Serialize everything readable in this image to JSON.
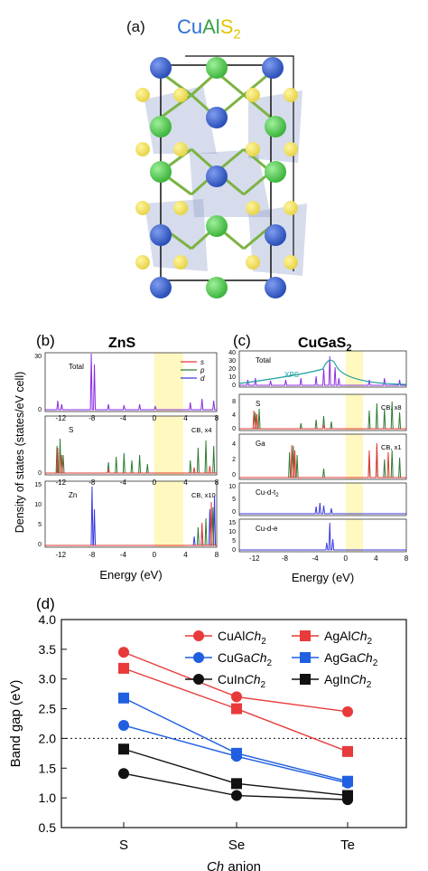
{
  "panel_a": {
    "label": "(a)",
    "formula_parts": [
      {
        "t": "Cu",
        "c": "#2f6fd6"
      },
      {
        "t": "Al",
        "c": "#3aa14a"
      },
      {
        "t": "S",
        "c": "#e0c400"
      },
      {
        "t": "2",
        "c": "#e0c400",
        "sub": true
      }
    ],
    "colors": {
      "cu": "#2a4fb8",
      "al": "#3db43d",
      "s": "#e6d44a",
      "tetra": "#8a9ac8"
    }
  },
  "panel_b": {
    "label": "(b)",
    "title": "ZnS",
    "subplots": [
      "Total",
      "S",
      "Zn"
    ],
    "right_notes": [
      "",
      "CB, x4",
      "CB, x10"
    ],
    "legend": [
      "s",
      "p",
      "d"
    ],
    "xticks": [
      "-12",
      "-8",
      "-4",
      "0",
      "4",
      "8"
    ],
    "yticks_total": [
      "30",
      "0"
    ],
    "yticks_s": [
      "0"
    ],
    "yticks_zn": [
      "15",
      "10",
      "5",
      "0"
    ],
    "xlabel": "Energy (eV)"
  },
  "panel_c": {
    "label": "(c)",
    "title_main": "CuGaS",
    "title_sub": "2",
    "subplots": [
      "Total",
      "S",
      "Ga",
      "Cu-d-t",
      "Cu-d-e"
    ],
    "subplot_sub": [
      "",
      "",
      "",
      "2",
      ""
    ],
    "right_notes": [
      "",
      "CB, x8",
      "CB, x1",
      "",
      ""
    ],
    "xps_label": "XPS",
    "xticks": [
      "-12",
      "-8",
      "-4",
      "0",
      "4",
      "8"
    ],
    "yticks_total": [
      "40",
      "30",
      "20",
      "10",
      "0"
    ],
    "yticks_s": [
      "8",
      "4",
      "0"
    ],
    "yticks_ga": [
      "4",
      "2",
      "0"
    ],
    "yticks_t2": [
      "10",
      "5",
      "0"
    ],
    "yticks_e": [
      "15",
      "10",
      "5",
      "0"
    ],
    "xlabel": "Energy (eV)"
  },
  "dos_ylabel": "Density of states (states/eV cell)",
  "panel_d": {
    "label": "(d)",
    "ylabel": "Band gap (eV)",
    "xlabel_italic": "Ch",
    "xlabel_rest": " anion",
    "legend": [
      {
        "name": "CuAl",
        "marker": "circle",
        "color": "#e83a3a"
      },
      {
        "name": "AgAl",
        "marker": "square",
        "color": "#e83a3a"
      },
      {
        "name": "CuGa",
        "marker": "circle",
        "color": "#1f5fe0"
      },
      {
        "name": "AgGa",
        "marker": "square",
        "color": "#1f5fe0"
      },
      {
        "name": "CuIn",
        "marker": "circle",
        "color": "#111111"
      },
      {
        "name": "AgIn",
        "marker": "square",
        "color": "#111111"
      }
    ],
    "legend_suffix_italic": "Ch",
    "legend_suffix_sub": "2"
  },
  "chart_data": {
    "type": "line",
    "categories": [
      "S",
      "Se",
      "Te"
    ],
    "ylabel": "Band gap (eV)",
    "xlabel": "Ch anion",
    "ylim": [
      0.5,
      4.0
    ],
    "yticks": [
      0.5,
      1.0,
      1.5,
      2.0,
      2.5,
      3.0,
      3.5,
      4.0
    ],
    "reference_line": 2.0,
    "series": [
      {
        "name": "CuAlCh2",
        "values": [
          3.45,
          2.7,
          2.45
        ]
      },
      {
        "name": "AgAlCh2",
        "values": [
          3.18,
          2.5,
          1.78
        ]
      },
      {
        "name": "CuGaCh2",
        "values": [
          2.22,
          1.7,
          1.25
        ]
      },
      {
        "name": "AgGaCh2",
        "values": [
          2.68,
          1.75,
          1.28
        ]
      },
      {
        "name": "CuInCh2",
        "values": [
          1.41,
          1.04,
          0.97
        ]
      },
      {
        "name": "AgInCh2",
        "values": [
          1.82,
          1.24,
          1.04
        ]
      }
    ]
  }
}
